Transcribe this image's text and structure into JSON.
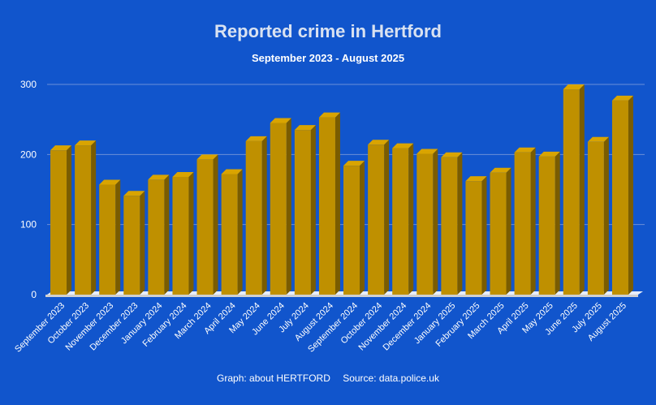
{
  "chart_data": {
    "type": "bar",
    "title": "Reported crime in Hertford",
    "subtitle": "September 2023 - August 2025",
    "xlabel": "",
    "ylabel": "",
    "ylim": [
      0,
      300
    ],
    "yticks": [
      0,
      100,
      200,
      300
    ],
    "grid": true,
    "legend": "none",
    "categories": [
      "September 2023",
      "October 2023",
      "November 2023",
      "December 2023",
      "January 2024",
      "February 2024",
      "March 2024",
      "April 2024",
      "May 2024",
      "June 2024",
      "July 2024",
      "August 2024",
      "September 2024",
      "October 2024",
      "November 2024",
      "December 2024",
      "January 2025",
      "February 2025",
      "March 2025",
      "April 2025",
      "May 2025",
      "June 2025",
      "July 2025",
      "August 2025"
    ],
    "values": [
      206,
      213,
      157,
      141,
      164,
      168,
      193,
      172,
      219,
      245,
      235,
      253,
      184,
      214,
      209,
      201,
      196,
      162,
      174,
      203,
      197,
      293,
      218,
      277
    ]
  },
  "footer": {
    "credit": "Graph: about HERTFORD",
    "source": "Source: data.police.uk"
  },
  "colors": {
    "background": "#1155cc",
    "bar_front": "#bf9000",
    "bar_side": "#7a5c00",
    "bar_top": "#d9a400",
    "grid": "#6b8fd8",
    "text": "#ffffff"
  }
}
